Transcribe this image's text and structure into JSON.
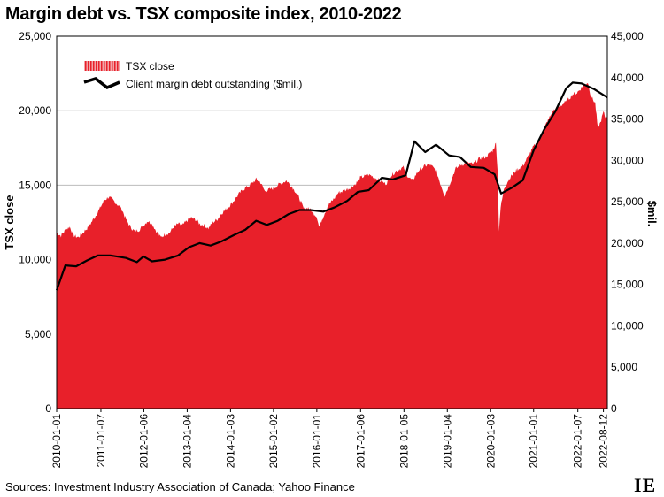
{
  "title": "Margin debt vs. TSX composite index, 2010-2022",
  "source": "Sources: Investment Industry Association of Canada; Yahoo Finance",
  "logo": "IE",
  "chart_data": {
    "type": "area+line",
    "title": "Margin debt vs. TSX composite index, 2010-2022",
    "ylabel_left": "TSX close",
    "ylabel_right": "$mil.",
    "ylim_left": [
      0,
      25000
    ],
    "ylim_right": [
      0,
      45000
    ],
    "yticks_left": [
      "0",
      "5,000",
      "10,000",
      "15,000",
      "20,000",
      "25,000"
    ],
    "yticks_right": [
      "0",
      "5,000",
      "10,000",
      "15,000",
      "20,000",
      "25,000",
      "30,000",
      "35,000",
      "40,000",
      "45,000"
    ],
    "xlim": [
      2010.0,
      2022.7
    ],
    "xticks": [
      {
        "label": "2010-01-01",
        "t": 2010.0
      },
      {
        "label": "2011-01-07",
        "t": 2011.02
      },
      {
        "label": "2012-01-06",
        "t": 2012.01
      },
      {
        "label": "2013-01-04",
        "t": 2013.01
      },
      {
        "label": "2014-01-03",
        "t": 2014.01
      },
      {
        "label": "2015-01-02",
        "t": 2015.0
      },
      {
        "label": "2016-01-01",
        "t": 2016.0
      },
      {
        "label": "2017-01-06",
        "t": 2017.01
      },
      {
        "label": "2018-01-05",
        "t": 2018.01
      },
      {
        "label": "2019-01-04",
        "t": 2019.01
      },
      {
        "label": "2020-01-03",
        "t": 2020.01
      },
      {
        "label": "2021-01-01",
        "t": 2021.0
      },
      {
        "label": "2022-01-07",
        "t": 2022.02
      },
      {
        "label": "2022-08-12",
        "t": 2022.61
      }
    ],
    "colors": {
      "area": "#e8202a",
      "line": "#000000",
      "grid": "#bbbbbb"
    },
    "legend_position": "top-left",
    "series": [
      {
        "name": "TSX close",
        "type": "area",
        "axis": "left",
        "points": [
          [
            2010.0,
            11800
          ],
          [
            2010.1,
            11600
          ],
          [
            2010.2,
            12000
          ],
          [
            2010.3,
            12200
          ],
          [
            2010.4,
            11600
          ],
          [
            2010.5,
            11500
          ],
          [
            2010.6,
            11800
          ],
          [
            2010.7,
            12100
          ],
          [
            2010.8,
            12500
          ],
          [
            2010.95,
            13200
          ],
          [
            2011.1,
            14000
          ],
          [
            2011.2,
            14200
          ],
          [
            2011.3,
            14000
          ],
          [
            2011.4,
            13700
          ],
          [
            2011.5,
            13400
          ],
          [
            2011.6,
            12700
          ],
          [
            2011.7,
            12200
          ],
          [
            2011.8,
            11900
          ],
          [
            2011.9,
            12000
          ],
          [
            2012.0,
            12300
          ],
          [
            2012.1,
            12600
          ],
          [
            2012.2,
            12400
          ],
          [
            2012.3,
            11900
          ],
          [
            2012.4,
            11500
          ],
          [
            2012.5,
            11700
          ],
          [
            2012.6,
            11800
          ],
          [
            2012.7,
            12200
          ],
          [
            2012.8,
            12400
          ],
          [
            2012.9,
            12300
          ],
          [
            2013.0,
            12600
          ],
          [
            2013.1,
            12800
          ],
          [
            2013.2,
            12700
          ],
          [
            2013.3,
            12400
          ],
          [
            2013.4,
            12300
          ],
          [
            2013.5,
            12100
          ],
          [
            2013.6,
            12500
          ],
          [
            2013.7,
            12700
          ],
          [
            2013.8,
            13100
          ],
          [
            2013.95,
            13500
          ],
          [
            2014.1,
            14000
          ],
          [
            2014.2,
            14400
          ],
          [
            2014.3,
            14700
          ],
          [
            2014.5,
            15100
          ],
          [
            2014.6,
            15400
          ],
          [
            2014.7,
            15200
          ],
          [
            2014.8,
            14600
          ],
          [
            2014.9,
            14700
          ],
          [
            2015.0,
            14800
          ],
          [
            2015.15,
            15100
          ],
          [
            2015.3,
            15300
          ],
          [
            2015.4,
            15000
          ],
          [
            2015.5,
            14600
          ],
          [
            2015.6,
            14100
          ],
          [
            2015.7,
            13400
          ],
          [
            2015.8,
            13500
          ],
          [
            2015.9,
            13200
          ],
          [
            2016.0,
            12900
          ],
          [
            2016.05,
            12200
          ],
          [
            2016.12,
            12700
          ],
          [
            2016.25,
            13600
          ],
          [
            2016.4,
            14100
          ],
          [
            2016.5,
            14500
          ],
          [
            2016.6,
            14600
          ],
          [
            2016.75,
            14800
          ],
          [
            2016.9,
            15100
          ],
          [
            2017.0,
            15500
          ],
          [
            2017.1,
            15600
          ],
          [
            2017.2,
            15700
          ],
          [
            2017.35,
            15500
          ],
          [
            2017.5,
            15200
          ],
          [
            2017.6,
            15100
          ],
          [
            2017.7,
            15600
          ],
          [
            2017.85,
            16000
          ],
          [
            2018.0,
            16200
          ],
          [
            2018.1,
            15600
          ],
          [
            2018.2,
            15300
          ],
          [
            2018.35,
            16000
          ],
          [
            2018.5,
            16300
          ],
          [
            2018.6,
            16400
          ],
          [
            2018.75,
            16000
          ],
          [
            2018.85,
            15100
          ],
          [
            2018.95,
            14300
          ],
          [
            2019.05,
            15000
          ],
          [
            2019.2,
            16100
          ],
          [
            2019.35,
            16400
          ],
          [
            2019.5,
            16500
          ],
          [
            2019.6,
            16400
          ],
          [
            2019.75,
            16800
          ],
          [
            2019.9,
            16900
          ],
          [
            2020.05,
            17300
          ],
          [
            2020.13,
            17800
          ],
          [
            2020.17,
            16000
          ],
          [
            2020.2,
            12000
          ],
          [
            2020.24,
            13500
          ],
          [
            2020.32,
            14800
          ],
          [
            2020.45,
            15500
          ],
          [
            2020.6,
            16000
          ],
          [
            2020.75,
            16300
          ],
          [
            2020.85,
            16800
          ],
          [
            2021.0,
            17600
          ],
          [
            2021.15,
            18100
          ],
          [
            2021.3,
            19200
          ],
          [
            2021.45,
            20000
          ],
          [
            2021.6,
            20300
          ],
          [
            2021.75,
            20600
          ],
          [
            2021.9,
            21100
          ],
          [
            2022.0,
            21200
          ],
          [
            2022.15,
            21700
          ],
          [
            2022.25,
            21900
          ],
          [
            2022.32,
            21000
          ],
          [
            2022.42,
            20500
          ],
          [
            2022.48,
            18800
          ],
          [
            2022.54,
            19200
          ],
          [
            2022.61,
            19900
          ],
          [
            2022.66,
            19500
          ],
          [
            2022.7,
            19700
          ]
        ]
      },
      {
        "name": "Client margin debt outstanding ($mil.)",
        "type": "line",
        "axis": "right",
        "points": [
          [
            2010.0,
            14300
          ],
          [
            2010.2,
            17300
          ],
          [
            2010.45,
            17200
          ],
          [
            2010.7,
            17900
          ],
          [
            2010.95,
            18500
          ],
          [
            2011.25,
            18500
          ],
          [
            2011.6,
            18200
          ],
          [
            2011.85,
            17700
          ],
          [
            2012.0,
            18400
          ],
          [
            2012.2,
            17800
          ],
          [
            2012.5,
            18000
          ],
          [
            2012.8,
            18500
          ],
          [
            2013.05,
            19500
          ],
          [
            2013.3,
            20000
          ],
          [
            2013.55,
            19700
          ],
          [
            2013.8,
            20200
          ],
          [
            2014.1,
            21000
          ],
          [
            2014.35,
            21600
          ],
          [
            2014.6,
            22700
          ],
          [
            2014.85,
            22200
          ],
          [
            2015.1,
            22700
          ],
          [
            2015.35,
            23500
          ],
          [
            2015.6,
            24000
          ],
          [
            2015.85,
            24000
          ],
          [
            2016.15,
            23800
          ],
          [
            2016.4,
            24300
          ],
          [
            2016.7,
            25100
          ],
          [
            2016.95,
            26200
          ],
          [
            2017.2,
            26400
          ],
          [
            2017.5,
            27900
          ],
          [
            2017.75,
            27700
          ],
          [
            2018.05,
            28200
          ],
          [
            2018.25,
            32300
          ],
          [
            2018.5,
            31000
          ],
          [
            2018.75,
            31900
          ],
          [
            2019.05,
            30600
          ],
          [
            2019.3,
            30400
          ],
          [
            2019.55,
            29200
          ],
          [
            2019.85,
            29100
          ],
          [
            2020.1,
            28300
          ],
          [
            2020.25,
            26000
          ],
          [
            2020.5,
            26700
          ],
          [
            2020.75,
            27600
          ],
          [
            2021.0,
            31200
          ],
          [
            2021.25,
            33800
          ],
          [
            2021.5,
            35900
          ],
          [
            2021.75,
            38700
          ],
          [
            2021.9,
            39400
          ],
          [
            2022.1,
            39300
          ],
          [
            2022.4,
            38600
          ],
          [
            2022.7,
            37600
          ]
        ]
      }
    ]
  }
}
